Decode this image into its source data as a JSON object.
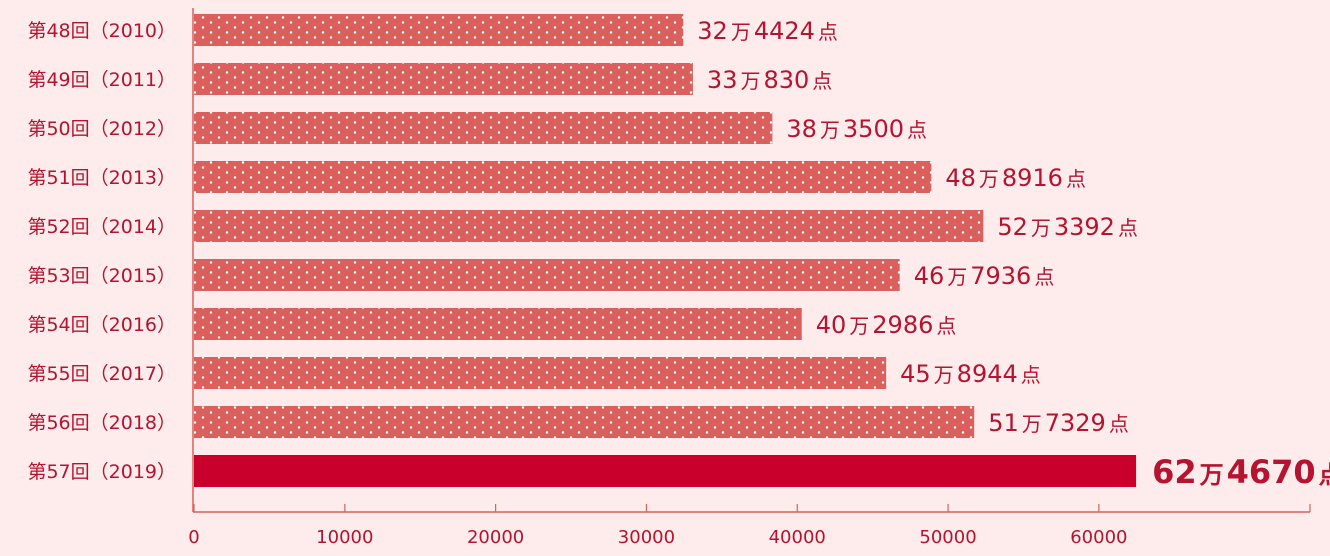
{
  "chart_data": {
    "type": "bar",
    "orientation": "horizontal",
    "categories": [
      "第48回（2010）",
      "第49回（2011）",
      "第50回（2012）",
      "第51回（2013）",
      "第52回（2014）",
      "第53回（2015）",
      "第54回（2016）",
      "第55回（2017）",
      "第56回（2018）",
      "第57回（2019）"
    ],
    "values": [
      324424,
      330830,
      383500,
      488916,
      523392,
      467936,
      402986,
      458944,
      517329,
      624670
    ],
    "value_labels": [
      {
        "man": "32",
        "rest": "4424"
      },
      {
        "man": "33",
        "rest": "830"
      },
      {
        "man": "38",
        "rest": "3500"
      },
      {
        "man": "48",
        "rest": "8916"
      },
      {
        "man": "52",
        "rest": "3392"
      },
      {
        "man": "46",
        "rest": "7936"
      },
      {
        "man": "40",
        "rest": "2986"
      },
      {
        "man": "45",
        "rest": "8944"
      },
      {
        "man": "51",
        "rest": "7329"
      },
      {
        "man": "62",
        "rest": "4670"
      }
    ],
    "unit_man": "万",
    "unit_ten": "点",
    "highlight_index": 9,
    "xticks": [
      "0",
      "10000",
      "20000",
      "30000",
      "40000",
      "50000",
      "60000"
    ],
    "xtick_values": [
      0,
      10000,
      20000,
      30000,
      40000,
      50000,
      60000
    ],
    "xlim": [
      0,
      74000
    ],
    "grid": false,
    "colors": {
      "bar": "#d9605c",
      "bar_highlight": "#c8002b",
      "dot": "#ffffff",
      "axis": "#d9605c",
      "text": "#b5132f",
      "background": "#fdeceb"
    }
  }
}
